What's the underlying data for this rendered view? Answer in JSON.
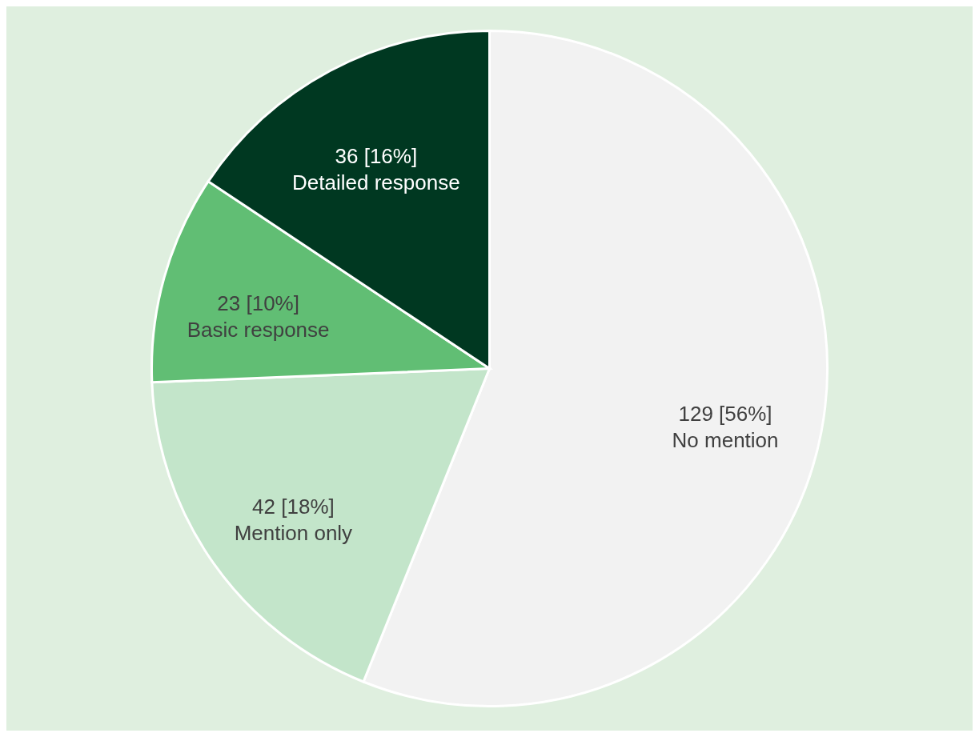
{
  "chart_data": {
    "type": "pie",
    "categories": [
      "No mention",
      "Mention only",
      "Basic response",
      "Detailed response"
    ],
    "values": [
      129,
      42,
      23,
      36
    ],
    "colors": [
      "#f2f2f2",
      "#c3e5ca",
      "#61be74",
      "#003821"
    ],
    "value_labels": [
      "129 [56%]",
      "42 [18%]",
      "23 [10%]",
      "36 [16%]"
    ]
  }
}
